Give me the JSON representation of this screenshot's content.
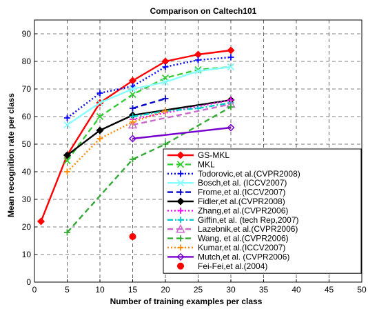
{
  "chart_data": {
    "type": "line",
    "title": "Comparison on Caltech101",
    "xlabel": "Number of training examples per class",
    "ylabel": "Mean recognition rate per class",
    "xlim": [
      0,
      50
    ],
    "ylim": [
      0,
      95
    ],
    "xticks": [
      0,
      5,
      10,
      15,
      20,
      25,
      30,
      35,
      40,
      45,
      50
    ],
    "yticks": [
      0,
      10,
      20,
      30,
      40,
      50,
      60,
      70,
      80,
      90
    ],
    "grid": true,
    "legend_position": "lower-right",
    "series": [
      {
        "name": "GS-MKL",
        "color": "#ff0000",
        "dash": "solid",
        "marker": "diamond-filled",
        "x": [
          1,
          5,
          10,
          15,
          20,
          25,
          30
        ],
        "y": [
          22,
          46,
          65,
          73,
          80,
          82.5,
          84
        ]
      },
      {
        "name": "MKL",
        "color": "#33cc33",
        "dash": "dashed",
        "marker": "x",
        "x": [
          5,
          10,
          15,
          20,
          25,
          30
        ],
        "y": [
          44,
          60,
          68,
          74,
          77,
          78
        ]
      },
      {
        "name": "Todorovic,et al.(CVPR2008)",
        "color": "#0000ff",
        "dash": "dotted",
        "marker": "plus",
        "x": [
          5,
          10,
          15,
          20,
          25,
          30
        ],
        "y": [
          59.5,
          68.5,
          71,
          78,
          80.5,
          81.5
        ]
      },
      {
        "name": "Bosch,et al. (ICCV2007)",
        "color": "#88ffff",
        "dash": "solid",
        "marker": "x",
        "x": [
          5,
          10,
          15,
          20,
          25,
          30
        ],
        "y": [
          57,
          65,
          70,
          72.5,
          76.5,
          78
        ]
      },
      {
        "name": "Frome,et al.(ICCV2007)",
        "color": "#0000cc",
        "dash": "dashed",
        "marker": "plus",
        "x": [
          15,
          20
        ],
        "y": [
          63,
          66.5
        ]
      },
      {
        "name": "Fidler,et al.(CVPR2008)",
        "color": "#000000",
        "dash": "solid",
        "marker": "diamond-filled",
        "x": [
          5,
          10,
          15,
          30
        ],
        "y": [
          46,
          55,
          60.5,
          66
        ]
      },
      {
        "name": "Zhang,et al.(CVPR2006)",
        "color": "#ff00ff",
        "dash": "dotted",
        "marker": "plus",
        "x": [
          15,
          30
        ],
        "y": [
          59,
          66
        ]
      },
      {
        "name": "Giffin,et al. (tech Rep,2007)",
        "color": "#00cccc",
        "dash": "dashdot",
        "marker": "plus",
        "x": [
          15,
          20,
          25,
          30
        ],
        "y": [
          60,
          62,
          63,
          65
        ]
      },
      {
        "name": "Lazebnik,et al.(CVPR2006)",
        "color": "#cc66cc",
        "dash": "dashed",
        "marker": "triangle",
        "x": [
          15,
          30
        ],
        "y": [
          57,
          64.5
        ]
      },
      {
        "name": "Wang, et al.(CVPR2006)",
        "color": "#33aa33",
        "dash": "dashed",
        "marker": "plus",
        "x": [
          5,
          15,
          20,
          30
        ],
        "y": [
          18,
          44.5,
          50,
          63.5
        ]
      },
      {
        "name": "Kumar,et al.(ICCV2007)",
        "color": "#ff8800",
        "dash": "dotted",
        "marker": "plus",
        "x": [
          5,
          10,
          15,
          20
        ],
        "y": [
          40,
          52,
          58,
          62
        ]
      },
      {
        "name": "Mutch,et al. (CVPR2006)",
        "color": "#7700cc",
        "dash": "solid",
        "marker": "diamond-open",
        "x": [
          15,
          30
        ],
        "y": [
          52,
          56
        ]
      },
      {
        "name": "Fei-Fei,et al.(2004)",
        "color": "#ff0000",
        "dash": "none",
        "marker": "circle-filled",
        "x": [
          15
        ],
        "y": [
          16.5
        ]
      }
    ]
  }
}
